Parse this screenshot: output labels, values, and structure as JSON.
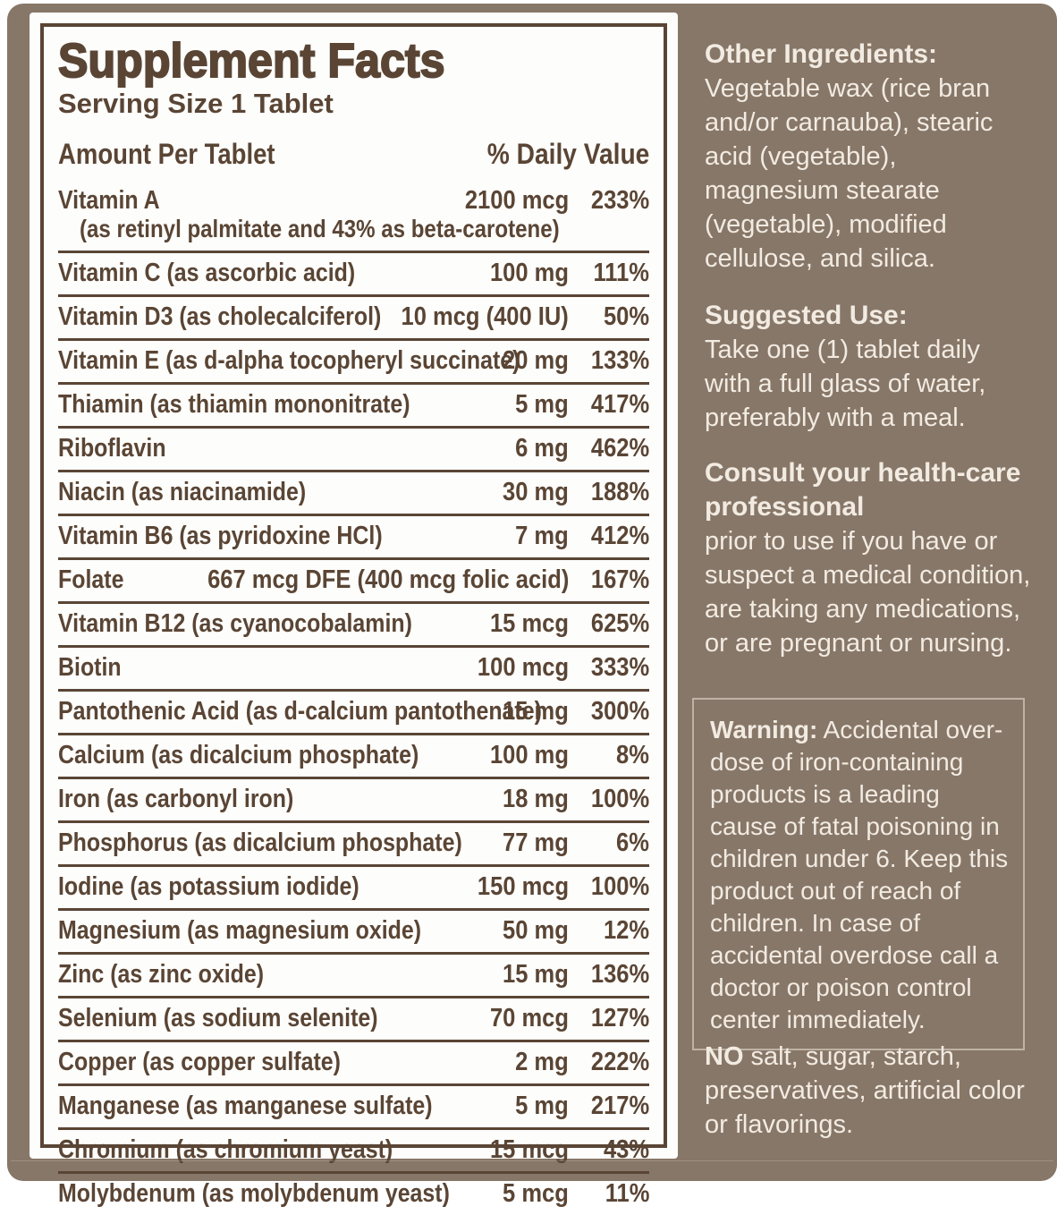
{
  "colors": {
    "label_bg": "#877768",
    "ink": "#5a4535",
    "light_text": "#f2ebe2"
  },
  "panel": {
    "title": "Supplement Facts",
    "serving_size": "Serving Size 1 Tablet",
    "header": {
      "left": "Amount Per Tablet",
      "right": "% Daily Value"
    },
    "rows": [
      {
        "name": "Vitamin A",
        "amount": "2100 mcg",
        "dv": "233%",
        "subline": "(as retinyl palmitate and 43% as beta-carotene)"
      },
      {
        "name": "Vitamin C (as ascorbic acid)",
        "amount": "100 mg",
        "dv": "111%"
      },
      {
        "name": "Vitamin D3 (as cholecalciferol)",
        "amount": "10 mcg (400 IU)",
        "dv": "50%"
      },
      {
        "name": "Vitamin E (as d-alpha tocopheryl succinate)",
        "amount": "20 mg",
        "dv": "133%"
      },
      {
        "name": "Thiamin (as thiamin mononitrate)",
        "amount": "5 mg",
        "dv": "417%"
      },
      {
        "name": "Riboflavin",
        "amount": "6 mg",
        "dv": "462%"
      },
      {
        "name": "Niacin (as niacinamide)",
        "amount": "30 mg",
        "dv": "188%"
      },
      {
        "name": "Vitamin B6 (as pyridoxine HCl)",
        "amount": "7 mg",
        "dv": "412%"
      },
      {
        "name": "Folate",
        "amount": "667 mcg DFE (400 mcg folic acid)",
        "dv": "167%"
      },
      {
        "name": "Vitamin B12 (as cyanocobalamin)",
        "amount": "15 mcg",
        "dv": "625%"
      },
      {
        "name": "Biotin",
        "amount": "100 mcg",
        "dv": "333%"
      },
      {
        "name": "Pantothenic Acid (as d-calcium pantothenate)",
        "amount": "15 mg",
        "dv": "300%"
      },
      {
        "name": "Calcium (as dicalcium phosphate)",
        "amount": "100 mg",
        "dv": "8%"
      },
      {
        "name": "Iron (as carbonyl iron)",
        "amount": "18 mg",
        "dv": "100%"
      },
      {
        "name": "Phosphorus (as dicalcium phosphate)",
        "amount": "77 mg",
        "dv": "6%"
      },
      {
        "name": "Iodine (as potassium iodide)",
        "amount": "150 mcg",
        "dv": "100%"
      },
      {
        "name": "Magnesium (as magnesium oxide)",
        "amount": "50 mg",
        "dv": "12%"
      },
      {
        "name": "Zinc (as zinc oxide)",
        "amount": "15 mg",
        "dv": "136%"
      },
      {
        "name": "Selenium (as sodium selenite)",
        "amount": "70 mcg",
        "dv": "127%"
      },
      {
        "name": "Copper (as copper sulfate)",
        "amount": "2 mg",
        "dv": "222%"
      },
      {
        "name": "Manganese (as manganese sulfate)",
        "amount": "5 mg",
        "dv": "217%"
      },
      {
        "name": "Chromium (as chromium yeast)",
        "amount": "15 mcg",
        "dv": "43%"
      },
      {
        "name": "Molybdenum (as molybdenum yeast)",
        "amount": "5 mcg",
        "dv": "11%"
      }
    ]
  },
  "sidebar": {
    "other_ingredients": {
      "heading": "Other Ingredients:",
      "body": "Vegetable wax (rice bran and/or carnauba), stearic acid (vegetable), magnesium stearate (vegetable), modified cellulose, and silica."
    },
    "suggested_use": {
      "heading": "Suggested Use:",
      "body": "Take one (1) tablet daily with a full glass of water, preferably with a meal."
    },
    "consult": {
      "heading": "Consult your health-care professional",
      "body": "prior to use if you have or suspect a medical condition, are taking any medications, or are pregnant or nursing."
    },
    "warning": {
      "heading": "Warning:",
      "body": " Accidental over-dose of iron-containing products is a leading cause of fatal poisoning in children under 6. Keep this product out of reach of children. In case of accidental overdose call a doctor or poison control center immediately."
    },
    "no_claims": {
      "lead": "NO",
      "body": " salt, sugar, starch, preservatives, artificial color or flavorings."
    }
  }
}
